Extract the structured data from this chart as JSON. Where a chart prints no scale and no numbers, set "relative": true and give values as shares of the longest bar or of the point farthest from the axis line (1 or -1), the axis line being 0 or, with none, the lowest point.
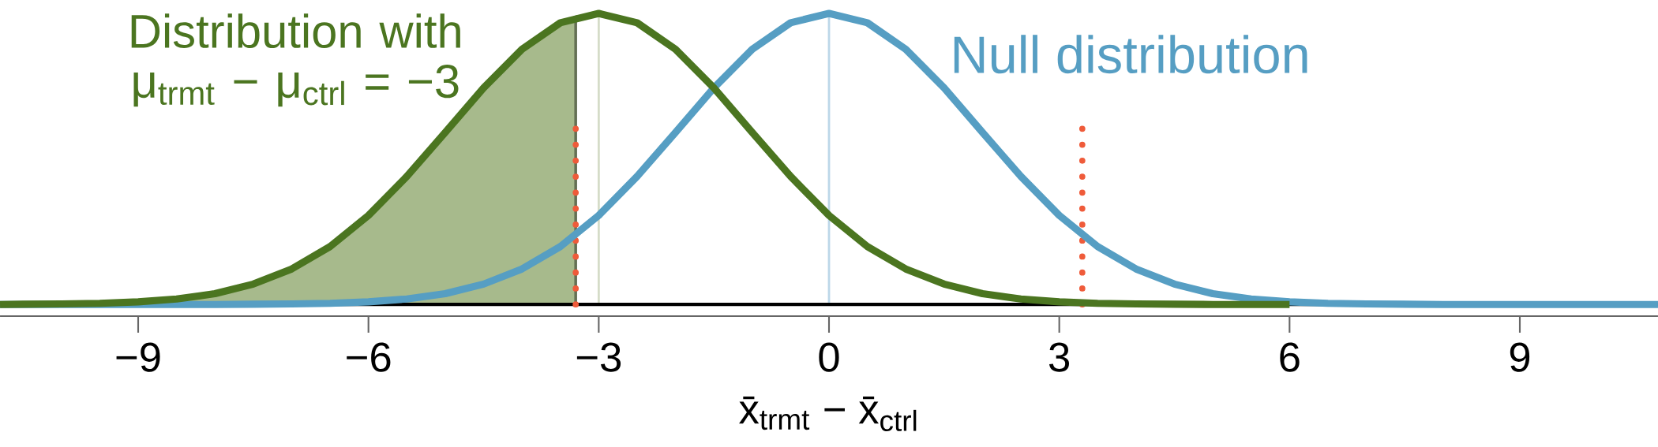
{
  "chart_data": {
    "type": "line",
    "relative": true,
    "xlabel": "x̄$_{trmt}$ − x̄$_{ctrl}$",
    "xlim": [
      -10.8,
      10.8
    ],
    "xticks": [
      {
        "value": -9,
        "label": "−9"
      },
      {
        "value": -6,
        "label": "−6"
      },
      {
        "value": -3,
        "label": "−3"
      },
      {
        "value": 0,
        "label": "0"
      },
      {
        "value": 3,
        "label": "3"
      },
      {
        "value": 6,
        "label": "6"
      },
      {
        "value": 9,
        "label": "9"
      }
    ],
    "ref_lines": [
      {
        "axis": "x",
        "value": -3,
        "color": "#d5dcc8"
      },
      {
        "axis": "x",
        "value": 0,
        "color": "#bcd7e8"
      }
    ],
    "series": [
      {
        "type": "area",
        "color": "#a7ba8c",
        "x": [
          -10.8,
          -10.5,
          -10,
          -9.5,
          -9,
          -8.5,
          -8,
          -7.5,
          -7,
          -6.5,
          -6,
          -5.5,
          -5,
          -4.5,
          -4,
          -3.5,
          -3.3
        ],
        "values": [
          0,
          0.001,
          0.002,
          0.004,
          0.009,
          0.019,
          0.037,
          0.07,
          0.122,
          0.199,
          0.306,
          0.44,
          0.591,
          0.744,
          0.877,
          0.968,
          0.988
        ]
      },
      {
        "type": "line",
        "line_style": "dotted",
        "color": "#ef5b3a",
        "x": [
          -3.3,
          -3.3
        ],
        "values": [
          0,
          0.61
        ]
      },
      {
        "type": "line",
        "line_style": "dotted",
        "color": "#ef5b3a",
        "x": [
          3.3,
          3.3
        ],
        "values": [
          0,
          0.61
        ]
      },
      {
        "name": "Null distribution",
        "color": "#569ec3",
        "x": [
          -10.8,
          -10.5,
          -10,
          -9.5,
          -9,
          -8.5,
          -8,
          -7.5,
          -7,
          -6.5,
          -6,
          -5.5,
          -5,
          -4.5,
          -4,
          -3.5,
          -3,
          -2.5,
          -2,
          -1.5,
          -1,
          -0.5,
          0,
          0.5,
          1,
          1.5,
          2,
          2.5,
          3,
          3.5,
          4,
          4.5,
          5,
          5.5,
          6,
          6.5,
          7,
          7.5,
          8,
          8.5,
          9,
          9.5,
          10,
          10.5,
          10.8
        ],
        "values": [
          0,
          0,
          0,
          0,
          0,
          0,
          0,
          0.001,
          0.002,
          0.004,
          0.009,
          0.019,
          0.037,
          0.07,
          0.122,
          0.199,
          0.306,
          0.44,
          0.591,
          0.744,
          0.877,
          0.968,
          1,
          0.968,
          0.877,
          0.744,
          0.591,
          0.44,
          0.306,
          0.199,
          0.122,
          0.07,
          0.037,
          0.019,
          0.009,
          0.004,
          0.002,
          0.001,
          0,
          0,
          0,
          0,
          0,
          0,
          0
        ]
      },
      {
        "name": "Distribution with μ$_{trmt}$ − μ$_{ctrl}$ = −3",
        "color": "#4b7520",
        "x": [
          -10.8,
          -10.5,
          -10,
          -9.5,
          -9,
          -8.5,
          -8,
          -7.5,
          -7,
          -6.5,
          -6,
          -5.5,
          -5,
          -4.5,
          -4,
          -3.5,
          -3,
          -2.5,
          -2,
          -1.5,
          -1,
          -0.5,
          0,
          0.5,
          1,
          1.5,
          2,
          2.5,
          3,
          3.5,
          4,
          4.5,
          5,
          5.5,
          6
        ],
        "values": [
          0,
          0.001,
          0.002,
          0.004,
          0.009,
          0.019,
          0.037,
          0.07,
          0.122,
          0.199,
          0.306,
          0.44,
          0.591,
          0.744,
          0.877,
          0.968,
          1,
          0.968,
          0.877,
          0.744,
          0.591,
          0.44,
          0.306,
          0.199,
          0.122,
          0.07,
          0.037,
          0.019,
          0.009,
          0.004,
          0.002,
          0.001,
          0,
          0,
          0
        ]
      }
    ]
  }
}
